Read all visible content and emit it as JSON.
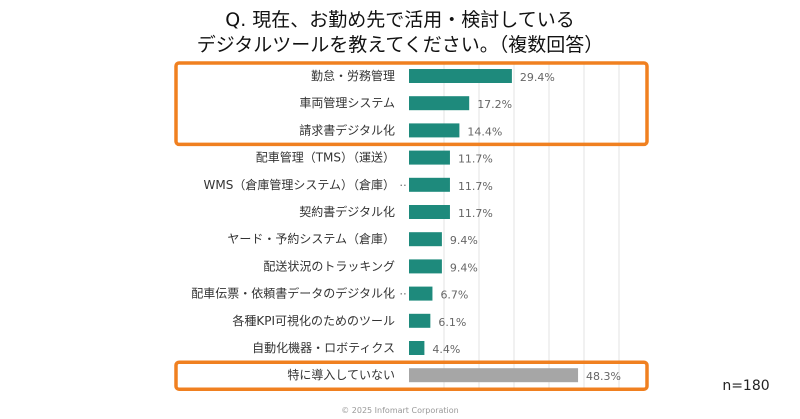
{
  "chart_data": {
    "type": "bar",
    "orientation": "horizontal",
    "title": [
      "Q. 現在、お勤め先で活用・検討している",
      "デジタルツールを教えてください。（複数回答）"
    ],
    "categories": [
      "勤怠・労務管理",
      "車両管理システム",
      "請求書デジタル化",
      "配車管理（TMS）（運送）",
      "WMS（倉庫管理システム）（倉庫）",
      "契約書デジタル化",
      "ヤード・予約システム（倉庫）",
      "配送状況のトラッキング",
      "配車伝票・依頼書データのデジタル化",
      "各種KPI可視化のためのツール",
      "自動化機器・ロボティクス",
      "特に導入していない"
    ],
    "truncation_mark": "‥",
    "truncated": [
      false,
      false,
      false,
      false,
      true,
      false,
      false,
      false,
      true,
      false,
      false,
      false
    ],
    "values": [
      29.4,
      17.2,
      14.4,
      11.7,
      11.7,
      11.7,
      9.4,
      9.4,
      6.7,
      6.1,
      4.4,
      48.3
    ],
    "value_labels": [
      "29.4%",
      "17.2%",
      "14.4%",
      "11.7%",
      "11.7%",
      "11.7%",
      "9.4%",
      "9.4%",
      "6.7%",
      "6.1%",
      "4.4%",
      "48.3%"
    ],
    "unit": "%",
    "xlim": [
      0,
      60
    ],
    "grid": true,
    "highlighted": [
      [
        0,
        2
      ],
      [
        11,
        11
      ]
    ],
    "colors": {
      "bar": "#1e8a7c",
      "bar_none": "#a6a6a6",
      "highlight_box": "#f08020",
      "grid": "#e3e3e3"
    },
    "note": "n=180"
  },
  "footer": {
    "copyright": "© 2025 Infomart Corporation"
  }
}
